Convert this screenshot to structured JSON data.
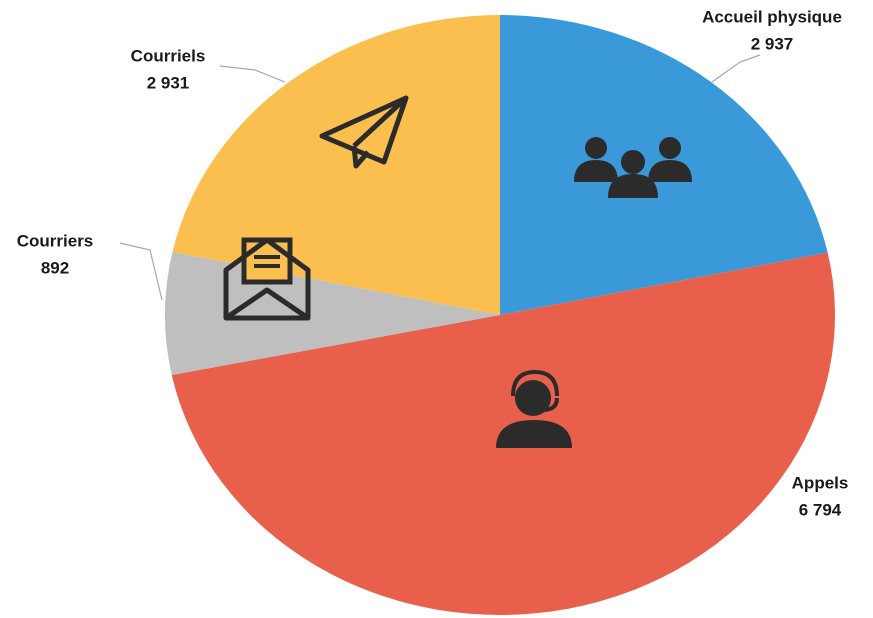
{
  "chart_data": {
    "type": "pie",
    "categories": [
      "Accueil physique",
      "Appels",
      "Courriers",
      "Courriels"
    ],
    "values": [
      2937,
      6794,
      892,
      2931
    ],
    "value_labels": [
      "2 937",
      "6 794",
      "892",
      "2 931"
    ],
    "colors": [
      "#3a9ad9",
      "#e8604c",
      "#bfbfbf",
      "#fbbf4f"
    ]
  }
}
